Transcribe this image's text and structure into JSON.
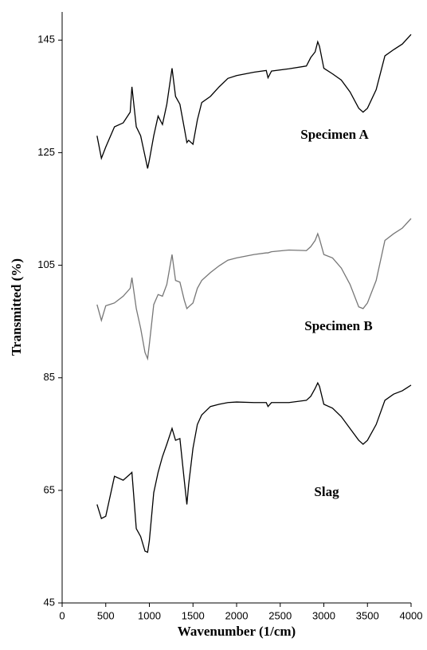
{
  "chart_data": {
    "type": "line",
    "x_label": "Wavenumber (1/cm)",
    "y_label": "Transmitted (%)",
    "x": [
      400,
      450,
      500,
      600,
      700,
      780,
      800,
      850,
      900,
      950,
      980,
      1000,
      1050,
      1100,
      1150,
      1200,
      1260,
      1300,
      1350,
      1400,
      1430,
      1450,
      1500,
      1550,
      1600,
      1700,
      1800,
      1900,
      2000,
      2200,
      2340,
      2360,
      2400,
      2600,
      2800,
      2850,
      2900,
      2930,
      2950,
      3000,
      3100,
      3200,
      3300,
      3400,
      3450,
      3500,
      3600,
      3700,
      3800,
      3900,
      4000
    ],
    "series": [
      {
        "name": "Specimen A",
        "color": "#000000",
        "values": [
          128,
          124,
          126,
          129.6,
          130.3,
          132.2,
          136.7,
          129.6,
          128,
          124.4,
          122.2,
          123.7,
          128,
          131.5,
          130,
          133.6,
          140,
          135,
          133.6,
          129.4,
          126.8,
          127.2,
          126.5,
          130.8,
          133.9,
          135,
          136.7,
          138.2,
          138.7,
          139.3,
          139.6,
          138.3,
          139.5,
          139.9,
          140.4,
          141.9,
          142.9,
          144.7,
          143.9,
          140,
          139,
          137.9,
          135.8,
          132.9,
          132.2,
          132.9,
          136.2,
          142.2,
          143.3,
          144.3,
          146
        ]
      },
      {
        "name": "Specimen B",
        "color": "#777777",
        "values": [
          98,
          95.2,
          97.8,
          98.3,
          99.5,
          100.9,
          102.8,
          97.3,
          93.8,
          89.5,
          88.4,
          91,
          98,
          99.8,
          99.5,
          101.6,
          106.9,
          102.3,
          102,
          98.8,
          97.3,
          97.6,
          98.3,
          100.9,
          102.3,
          103.7,
          104.9,
          105.9,
          106.3,
          106.9,
          107.2,
          107.2,
          107.4,
          107.7,
          107.6,
          108.3,
          109.4,
          110.6,
          109.7,
          106.9,
          106.3,
          104.5,
          101.6,
          97.6,
          97.3,
          98.3,
          102.3,
          109.4,
          110.6,
          111.6,
          113.3
        ]
      },
      {
        "name": "Slag",
        "color": "#000000",
        "values": [
          62.5,
          60,
          60.4,
          67.5,
          66.8,
          67.9,
          68.2,
          58.2,
          56.8,
          54.2,
          54,
          56.1,
          64.6,
          68.2,
          71,
          73.2,
          76,
          73.9,
          74.2,
          66.8,
          62.5,
          66,
          72.5,
          76.7,
          78.4,
          79.9,
          80.3,
          80.6,
          80.7,
          80.6,
          80.6,
          79.9,
          80.6,
          80.6,
          81,
          81.7,
          83.1,
          84.1,
          83.5,
          80.3,
          79.6,
          78.1,
          76,
          73.9,
          73.2,
          73.9,
          76.7,
          81,
          82.1,
          82.7,
          83.7
        ]
      }
    ],
    "xlim": [
      0,
      4000
    ],
    "xticks": [
      0,
      500,
      1000,
      1500,
      2000,
      2500,
      3000,
      3500,
      4000
    ],
    "ylim": [
      45,
      150
    ],
    "yticks": [
      45,
      65,
      85,
      105,
      125,
      145
    ]
  }
}
